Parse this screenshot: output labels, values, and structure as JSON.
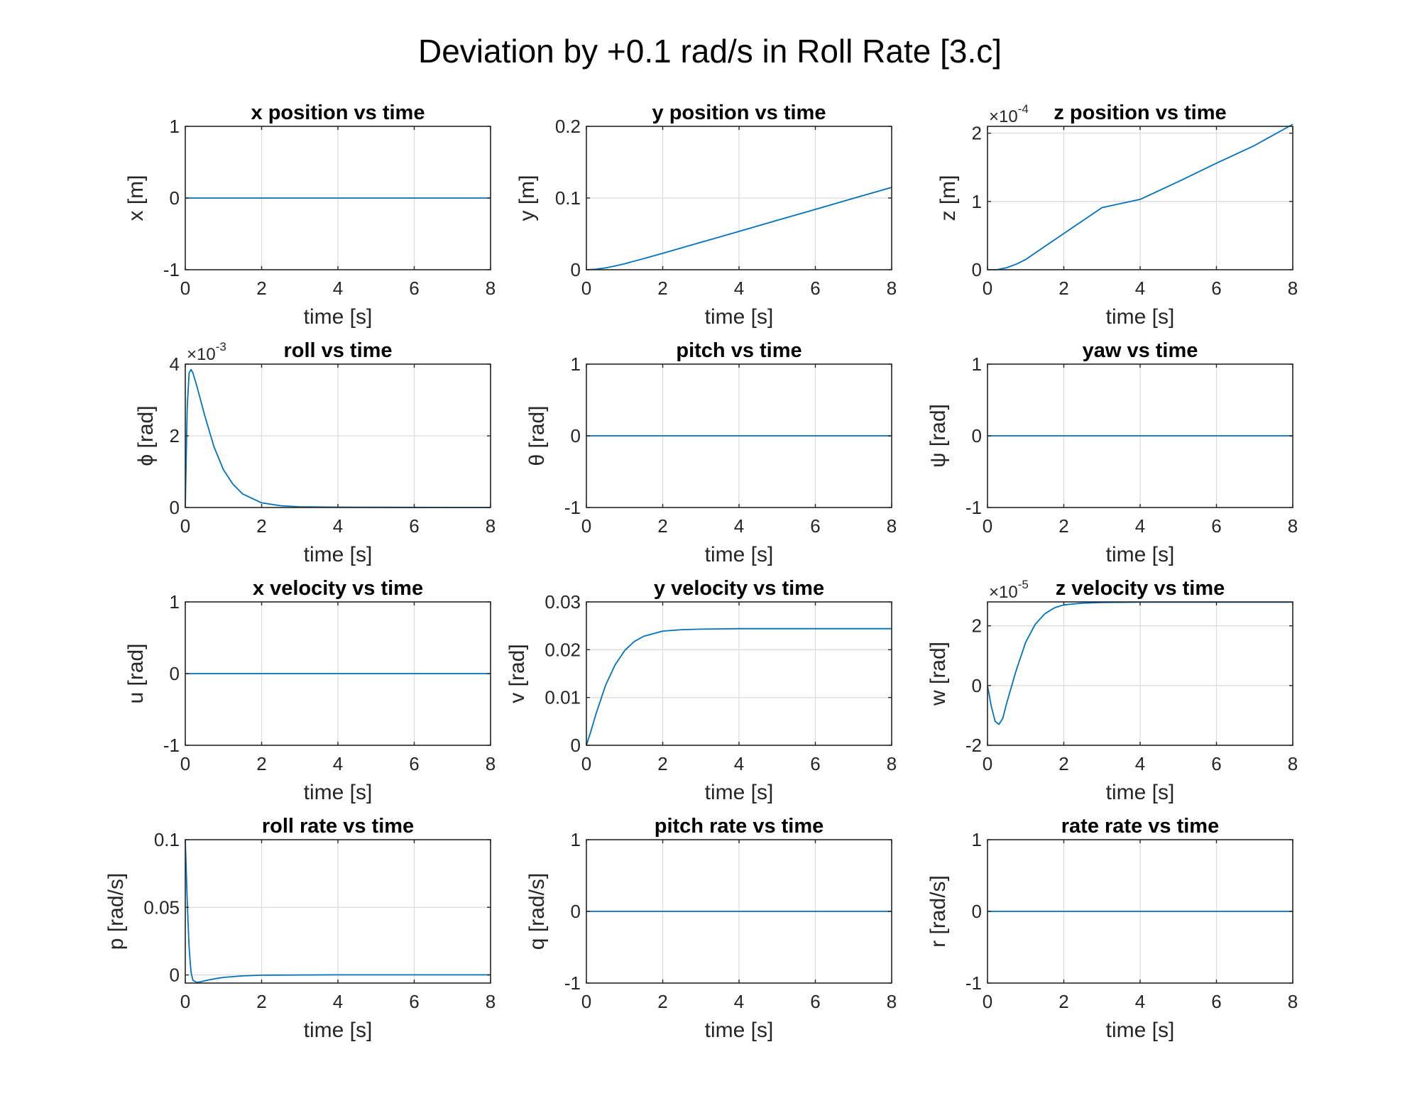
{
  "figure": {
    "title": "Deviation by +0.1 rad/s in Roll Rate [3.c]"
  },
  "chart_data": [
    {
      "type": "line",
      "title": "x position vs time",
      "xlabel": "time [s]",
      "ylabel": "x [m]",
      "xlim": [
        0,
        8
      ],
      "ylim": [
        -1,
        1
      ],
      "xticks": [
        0,
        2,
        4,
        6,
        8
      ],
      "yticks": [
        -1,
        0,
        1
      ],
      "yticklabels": [
        "-1",
        "0",
        "1"
      ],
      "y_multiplier": "",
      "x": [
        0,
        8
      ],
      "y": [
        0,
        0
      ]
    },
    {
      "type": "line",
      "title": "y position vs time",
      "xlabel": "time [s]",
      "ylabel": "y [m]",
      "xlim": [
        0,
        8
      ],
      "ylim": [
        0,
        0.2
      ],
      "xticks": [
        0,
        2,
        4,
        6,
        8
      ],
      "yticks": [
        0,
        0.1,
        0.2
      ],
      "yticklabels": [
        "0",
        "0.1",
        "0.2"
      ],
      "y_multiplier": "",
      "x": [
        0,
        0.25,
        0.5,
        0.75,
        1,
        1.5,
        2,
        3,
        4,
        5,
        6,
        7,
        8
      ],
      "y": [
        0,
        0.0007,
        0.0026,
        0.0052,
        0.0083,
        0.0154,
        0.0229,
        0.0382,
        0.0535,
        0.0689,
        0.0842,
        0.0996,
        0.1149
      ]
    },
    {
      "type": "line",
      "title": "z position vs time",
      "xlabel": "time [s]",
      "ylabel": "z [m]",
      "xlim": [
        0,
        8
      ],
      "ylim": [
        0,
        2.1
      ],
      "xticks": [
        0,
        2,
        4,
        6,
        8
      ],
      "yticks": [
        0,
        1,
        2
      ],
      "yticklabels": [
        "0",
        "1",
        "2"
      ],
      "y_multiplier": "×10",
      "y_multiplier_exp": "-4",
      "x": [
        0,
        0.25,
        0.5,
        0.75,
        1,
        1.5,
        2,
        3,
        4,
        5,
        6,
        7,
        8
      ],
      "y": [
        0,
        0,
        0.03,
        0.08,
        0.15,
        0.34,
        0.53,
        0.91,
        1.03,
        1.29,
        1.56,
        1.82,
        2.13
      ]
    },
    {
      "type": "line",
      "title": "roll vs time",
      "xlabel": "time [s]",
      "ylabel": "ϕ [rad]",
      "xlim": [
        0,
        8
      ],
      "ylim": [
        0,
        4
      ],
      "xticks": [
        0,
        2,
        4,
        6,
        8
      ],
      "yticks": [
        0,
        2,
        4
      ],
      "yticklabels": [
        "0",
        "2",
        "4"
      ],
      "y_multiplier": "×10",
      "y_multiplier_exp": "-3",
      "x": [
        0,
        0.05,
        0.1,
        0.15,
        0.2,
        0.3,
        0.5,
        0.75,
        1,
        1.25,
        1.5,
        2,
        2.5,
        3,
        4,
        5,
        6,
        8
      ],
      "y": [
        0,
        2.8,
        3.75,
        3.85,
        3.75,
        3.4,
        2.6,
        1.7,
        1.05,
        0.65,
        0.38,
        0.13,
        0.05,
        0.02,
        0.01,
        0.005,
        0.003,
        0.002
      ]
    },
    {
      "type": "line",
      "title": "pitch vs time",
      "xlabel": "time [s]",
      "ylabel": "θ [rad]",
      "xlim": [
        0,
        8
      ],
      "ylim": [
        -1,
        1
      ],
      "xticks": [
        0,
        2,
        4,
        6,
        8
      ],
      "yticks": [
        -1,
        0,
        1
      ],
      "yticklabels": [
        "-1",
        "0",
        "1"
      ],
      "y_multiplier": "",
      "x": [
        0,
        8
      ],
      "y": [
        0,
        0
      ]
    },
    {
      "type": "line",
      "title": "yaw vs time",
      "xlabel": "time [s]",
      "ylabel": "ψ [rad]",
      "xlim": [
        0,
        8
      ],
      "ylim": [
        -1,
        1
      ],
      "xticks": [
        0,
        2,
        4,
        6,
        8
      ],
      "yticks": [
        -1,
        0,
        1
      ],
      "yticklabels": [
        "-1",
        "0",
        "1"
      ],
      "y_multiplier": "",
      "x": [
        0,
        8
      ],
      "y": [
        0,
        0
      ]
    },
    {
      "type": "line",
      "title": "x velocity vs time",
      "xlabel": "time [s]",
      "ylabel": "u [rad]",
      "xlim": [
        0,
        8
      ],
      "ylim": [
        -1,
        1
      ],
      "xticks": [
        0,
        2,
        4,
        6,
        8
      ],
      "yticks": [
        -1,
        0,
        1
      ],
      "yticklabels": [
        "-1",
        "0",
        "1"
      ],
      "y_multiplier": "",
      "x": [
        0,
        8
      ],
      "y": [
        0,
        0
      ]
    },
    {
      "type": "line",
      "title": "y velocity vs time",
      "xlabel": "time [s]",
      "ylabel": "v [rad]",
      "xlim": [
        0,
        8
      ],
      "ylim": [
        0,
        0.03
      ],
      "xticks": [
        0,
        2,
        4,
        6,
        8
      ],
      "yticks": [
        0,
        0.01,
        0.02,
        0.03
      ],
      "yticklabels": [
        "0",
        "0.01",
        "0.02",
        "0.03"
      ],
      "y_multiplier": "",
      "x": [
        0,
        0.1,
        0.25,
        0.5,
        0.75,
        1,
        1.25,
        1.5,
        2,
        2.5,
        3,
        4,
        5,
        6,
        8
      ],
      "y": [
        0,
        0.0025,
        0.0065,
        0.0125,
        0.0168,
        0.0198,
        0.0217,
        0.0228,
        0.0239,
        0.0242,
        0.0243,
        0.0244,
        0.0244,
        0.0244,
        0.0244
      ]
    },
    {
      "type": "line",
      "title": "z velocity vs time",
      "xlabel": "time [s]",
      "ylabel": "w [rad]",
      "xlim": [
        0,
        8
      ],
      "ylim": [
        -2,
        2.8
      ],
      "xticks": [
        0,
        2,
        4,
        6,
        8
      ],
      "yticks": [
        -2,
        0,
        2
      ],
      "yticklabels": [
        "-2",
        "0",
        "2"
      ],
      "y_multiplier": "×10",
      "y_multiplier_exp": "-5",
      "x": [
        0,
        0.1,
        0.2,
        0.3,
        0.4,
        0.5,
        0.75,
        1,
        1.25,
        1.5,
        1.75,
        2,
        2.5,
        3,
        4,
        5,
        6,
        8
      ],
      "y": [
        0,
        -0.7,
        -1.2,
        -1.3,
        -1.1,
        -0.6,
        0.5,
        1.45,
        2.05,
        2.4,
        2.6,
        2.7,
        2.76,
        2.78,
        2.79,
        2.79,
        2.79,
        2.79
      ]
    },
    {
      "type": "line",
      "title": "roll rate vs time",
      "xlabel": "time [s]",
      "ylabel": "p [rad/s]",
      "xlim": [
        0,
        8
      ],
      "ylim": [
        -0.006,
        0.1
      ],
      "xticks": [
        0,
        2,
        4,
        6,
        8
      ],
      "yticks": [
        0,
        0.05,
        0.1
      ],
      "yticklabels": [
        "0",
        "0.05",
        "0.1"
      ],
      "y_multiplier": "",
      "x": [
        0,
        0.05,
        0.1,
        0.15,
        0.2,
        0.3,
        0.4,
        0.6,
        0.8,
        1,
        1.5,
        2,
        3,
        4,
        8
      ],
      "y": [
        0.1,
        0.055,
        0.02,
        0.002,
        -0.004,
        -0.0055,
        -0.005,
        -0.0038,
        -0.0027,
        -0.0018,
        -0.0007,
        -0.0002,
        0,
        0.0001,
        0.0001
      ]
    },
    {
      "type": "line",
      "title": "pitch rate vs time",
      "xlabel": "time [s]",
      "ylabel": "q [rad/s]",
      "xlim": [
        0,
        8
      ],
      "ylim": [
        -1,
        1
      ],
      "xticks": [
        0,
        2,
        4,
        6,
        8
      ],
      "yticks": [
        -1,
        0,
        1
      ],
      "yticklabels": [
        "-1",
        "0",
        "1"
      ],
      "y_multiplier": "",
      "x": [
        0,
        8
      ],
      "y": [
        0,
        0
      ]
    },
    {
      "type": "line",
      "title": "rate rate vs time",
      "xlabel": "time [s]",
      "ylabel": "r [rad/s]",
      "xlim": [
        0,
        8
      ],
      "ylim": [
        -1,
        1
      ],
      "xticks": [
        0,
        2,
        4,
        6,
        8
      ],
      "yticks": [
        -1,
        0,
        1
      ],
      "yticklabels": [
        "-1",
        "0",
        "1"
      ],
      "y_multiplier": "",
      "x": [
        0,
        8
      ],
      "y": [
        0,
        0
      ]
    }
  ],
  "colors": {
    "line": "#0072BD",
    "axis": "#262626",
    "grid": "#dcdcdc"
  }
}
